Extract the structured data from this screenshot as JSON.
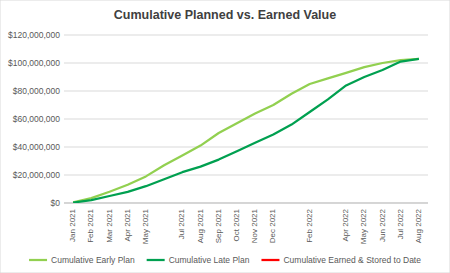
{
  "chart_data": {
    "type": "line",
    "title": "Cumulative Planned vs. Earned Value",
    "categories": [
      "Jan 2021",
      "Feb 2021",
      "Mar 2021",
      "Apr 2021",
      "May 2021",
      null,
      "Jul 2021",
      "Aug 2021",
      "Sep 2021",
      "Oct 2021",
      "Nov 2021",
      "Dec 2021",
      null,
      "Feb 2022",
      null,
      "Apr 2022",
      "May 2022",
      "Jun 2022",
      "Jul 2022",
      "Aug 2022"
    ],
    "series": [
      {
        "name": "Cumulative Early Plan",
        "color": "#92d050",
        "values": [
          500000,
          3500000,
          8000000,
          13000000,
          19000000,
          27000000,
          34000000,
          41000000,
          50000000,
          57000000,
          64000000,
          70000000,
          78000000,
          85000000,
          89000000,
          93000000,
          97000000,
          100000000,
          102000000,
          103000000
        ]
      },
      {
        "name": "Cumulative Late Plan",
        "color": "#00a050",
        "values": [
          300000,
          2000000,
          5000000,
          8000000,
          12000000,
          17000000,
          22000000,
          26000000,
          31000000,
          37000000,
          43000000,
          49000000,
          56000000,
          65000000,
          74000000,
          84000000,
          90000000,
          95000000,
          101000000,
          103000000
        ]
      },
      {
        "name": "Cumulative Earned & Stored to Date",
        "color": "#ff0000",
        "values": [
          null,
          null,
          null,
          null,
          null,
          null,
          null,
          null,
          null,
          null,
          null,
          null,
          null,
          null,
          null,
          null,
          null,
          null,
          null,
          null
        ]
      }
    ],
    "ylim": [
      0,
      120000000
    ],
    "yticks": [
      {
        "value": 0,
        "label": "$0"
      },
      {
        "value": 20000000,
        "label": "$20,000,000"
      },
      {
        "value": 40000000,
        "label": "$40,000,000"
      },
      {
        "value": 60000000,
        "label": "$60,000,000"
      },
      {
        "value": 80000000,
        "label": "$80,000,000"
      },
      {
        "value": 100000000,
        "label": "$100,000,000"
      },
      {
        "value": 120000000,
        "label": "$120,000,000"
      }
    ],
    "grid": true,
    "legend": "bottom"
  }
}
